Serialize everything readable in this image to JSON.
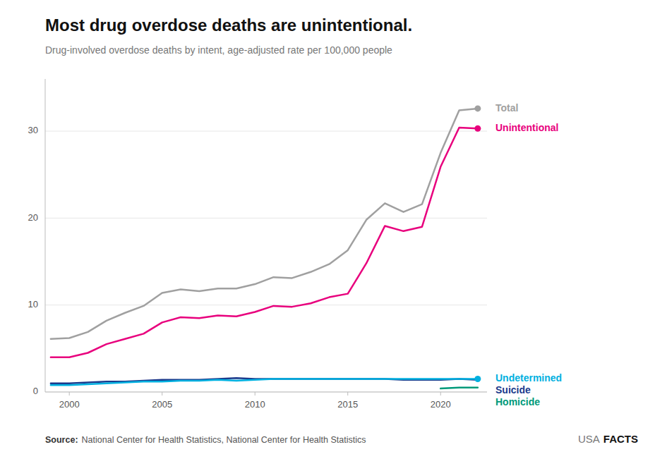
{
  "chart_data": {
    "type": "line",
    "title": "Most drug overdose deaths are unintentional.",
    "subtitle": "Drug-involved overdose deaths by intent, age-adjusted rate per 100,000 people",
    "source_label": "Source:",
    "source": "National Center for Health Statistics, National Center for Health Statistics",
    "credit": [
      "USA",
      "FACTS"
    ],
    "x": [
      1999,
      2000,
      2001,
      2002,
      2003,
      2004,
      2005,
      2006,
      2007,
      2008,
      2009,
      2010,
      2011,
      2012,
      2013,
      2014,
      2015,
      2016,
      2017,
      2018,
      2019,
      2020,
      2021,
      2022
    ],
    "series": [
      {
        "name": "Total",
        "color": "#a0a0a0",
        "marker": "end-dot",
        "values": [
          6.1,
          6.2,
          6.9,
          8.2,
          9.1,
          9.9,
          11.4,
          11.8,
          11.6,
          11.9,
          11.9,
          12.4,
          13.2,
          13.1,
          13.8,
          14.7,
          16.3,
          19.8,
          21.7,
          20.7,
          21.6,
          27.5,
          32.4,
          32.6
        ]
      },
      {
        "name": "Unintentional",
        "color": "#e8007d",
        "marker": "end-dot",
        "values": [
          4.0,
          4.0,
          4.5,
          5.5,
          6.1,
          6.7,
          8.0,
          8.6,
          8.5,
          8.8,
          8.7,
          9.2,
          9.9,
          9.8,
          10.2,
          10.9,
          11.3,
          14.8,
          19.1,
          18.5,
          19.0,
          25.9,
          30.4,
          30.3
        ]
      },
      {
        "name": "Suicide",
        "color": "#1a3a8c",
        "values": [
          1.0,
          1.0,
          1.1,
          1.2,
          1.2,
          1.3,
          1.4,
          1.4,
          1.4,
          1.5,
          1.6,
          1.5,
          1.5,
          1.5,
          1.5,
          1.5,
          1.5,
          1.5,
          1.5,
          1.4,
          1.4,
          1.4,
          1.5,
          1.4
        ]
      },
      {
        "name": "Undetermined",
        "color": "#00b0e0",
        "marker": "end-dot",
        "values": [
          0.8,
          0.8,
          0.9,
          1.0,
          1.1,
          1.2,
          1.2,
          1.3,
          1.3,
          1.4,
          1.3,
          1.4,
          1.5,
          1.5,
          1.5,
          1.5,
          1.5,
          1.5,
          1.5,
          1.5,
          1.5,
          1.5,
          1.5,
          1.5
        ]
      },
      {
        "name": "Homicide",
        "color": "#009a7a",
        "values": [
          null,
          null,
          null,
          null,
          null,
          null,
          null,
          null,
          null,
          null,
          null,
          null,
          null,
          null,
          null,
          null,
          null,
          null,
          null,
          null,
          null,
          0.4,
          0.5,
          0.5
        ]
      }
    ],
    "xlim": [
      1998.7,
      2022.5
    ],
    "xticks": [
      2000,
      2005,
      2010,
      2015,
      2020
    ],
    "ylim": [
      0,
      36
    ],
    "yticks": [
      0,
      10,
      20,
      30
    ],
    "grid": true
  }
}
